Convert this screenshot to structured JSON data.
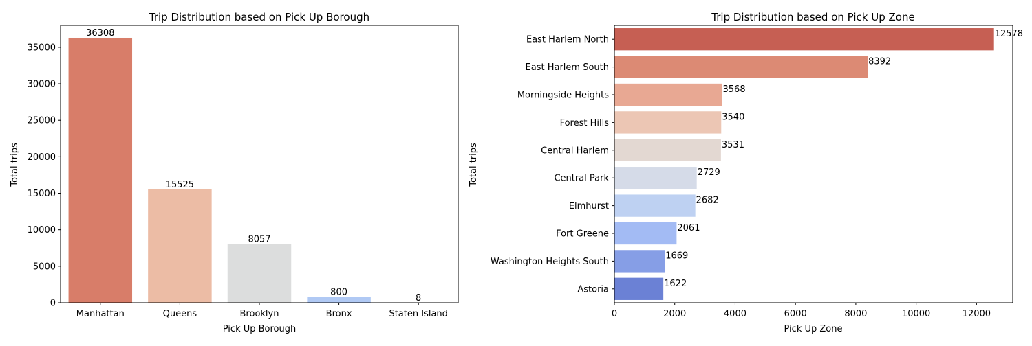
{
  "chart_data": [
    {
      "type": "bar",
      "title": "Trip Distribution based on Pick Up Borough",
      "xlabel": "Pick Up Borough",
      "ylabel": "Total trips",
      "categories": [
        "Manhattan",
        "Queens",
        "Brooklyn",
        "Bronx",
        "Staten Island"
      ],
      "values": [
        36308,
        15525,
        8057,
        800,
        8
      ],
      "colors": [
        "#d87d69",
        "#ecbca5",
        "#dcdddd",
        "#b0c9f4",
        "#7f9ff4"
      ],
      "ylim": [
        0,
        38000
      ],
      "yticks": [
        0,
        5000,
        10000,
        15000,
        20000,
        25000,
        30000,
        35000
      ],
      "grid": false,
      "orientation": "vertical"
    },
    {
      "type": "bar",
      "title": "Trip Distribution based on Pick Up Zone",
      "xlabel": "Pick Up Zone",
      "ylabel": "Total trips",
      "categories": [
        "East Harlem North",
        "East Harlem South",
        "Morningside Heights",
        "Forest Hills",
        "Central Harlem",
        "Central Park",
        "Elmhurst",
        "Fort Greene",
        "Washington Heights South",
        "Astoria"
      ],
      "values": [
        12578,
        8392,
        3568,
        3540,
        3531,
        2729,
        2682,
        2061,
        1669,
        1622
      ],
      "colors": [
        "#c65f53",
        "#dc8a74",
        "#e8a893",
        "#ecc6b4",
        "#e3d8d2",
        "#d5dbe8",
        "#bed1f2",
        "#a3bbf4",
        "#869ee6",
        "#6b81d5"
      ],
      "xlim": [
        0,
        13200
      ],
      "xticks": [
        0,
        2000,
        4000,
        6000,
        8000,
        10000,
        12000
      ],
      "grid": false,
      "orientation": "horizontal"
    }
  ]
}
